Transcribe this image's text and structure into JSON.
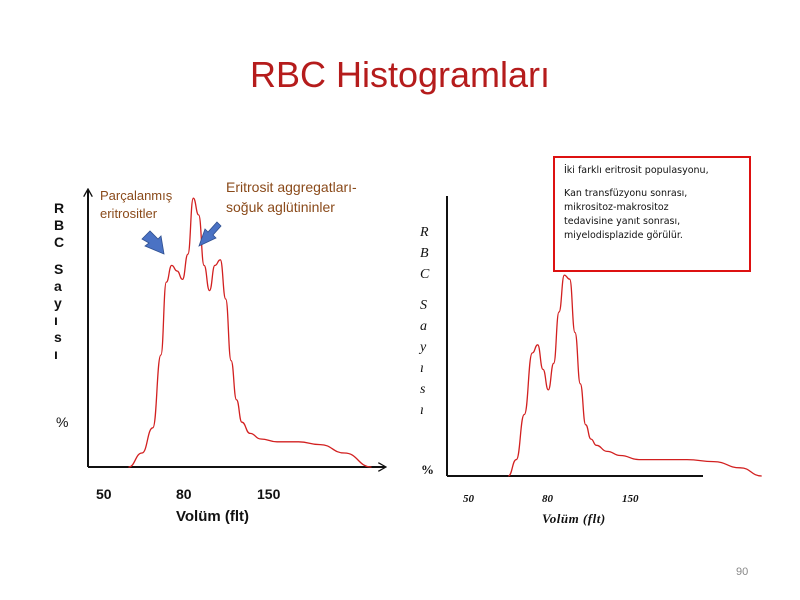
{
  "slide": {
    "title": "RBC Histogramları",
    "page_number": "90"
  },
  "colors": {
    "title": "#b51c1c",
    "curve": "#d22020",
    "axis": "#111111",
    "arrow": "#4a72c4",
    "annotation": "#8a4a1a",
    "box_border": "#dd1111"
  },
  "chart_data": [
    {
      "type": "line",
      "ylabel_letters": [
        "R",
        "B",
        "C",
        "",
        "S",
        "a",
        "y",
        "ı",
        "s",
        "ı",
        "",
        "%"
      ],
      "xlabel": "Volüm (flt)",
      "x_tick_labels": [
        "50",
        "80",
        "150"
      ],
      "xlim": [
        40,
        170
      ],
      "ylim": [
        0,
        100
      ],
      "grid": false,
      "series": [
        {
          "x": [
            55,
            60,
            64,
            67,
            69,
            71,
            73,
            75,
            77,
            79,
            81,
            83,
            85,
            87,
            89,
            91,
            93,
            95,
            97,
            100,
            104,
            110,
            118,
            126,
            135,
            145
          ],
          "y": [
            0,
            5,
            14,
            40,
            66,
            72,
            70,
            67,
            76,
            96,
            90,
            72,
            63,
            72,
            74,
            60,
            38,
            24,
            16,
            12,
            10,
            9,
            9,
            8,
            5,
            0
          ]
        }
      ],
      "annotations": [
        {
          "text_lines": [
            "Parçalanmış",
            "eritrositler"
          ],
          "points_to_x": 71
        },
        {
          "text_lines": [
            "Eritrosit aggregatları-",
            "soğuk aglütininler"
          ],
          "points_to_x": 89
        }
      ]
    },
    {
      "type": "line",
      "ylabel_letters": [
        "R",
        "B",
        "C",
        "",
        "S",
        "a",
        "y",
        "ı",
        "s",
        "ı",
        "",
        "%"
      ],
      "xlabel": "Volüm (flt)",
      "x_tick_labels": [
        "50",
        "80",
        "150"
      ],
      "xlim": [
        40,
        170
      ],
      "ylim": [
        0,
        100
      ],
      "grid": false,
      "series": [
        {
          "x": [
            63,
            66,
            69,
            72,
            74,
            76,
            78,
            80,
            82,
            84,
            86,
            88,
            90,
            92,
            94,
            96,
            100,
            105,
            112,
            120,
            130,
            140,
            150,
            158
          ],
          "y": [
            0,
            8,
            30,
            60,
            64,
            52,
            42,
            55,
            80,
            98,
            96,
            70,
            45,
            25,
            18,
            15,
            12,
            10,
            8,
            8,
            8,
            7,
            4,
            0
          ]
        }
      ],
      "info_box": {
        "line1": "İki farklı eritrosit populasyonu,",
        "lines": [
          "Kan transfüzyonu sonrası,",
          "mikrositoz-makrositoz",
          "tedavisine yanıt sonrası,",
          "miyelodisplazide görülür."
        ]
      }
    }
  ]
}
